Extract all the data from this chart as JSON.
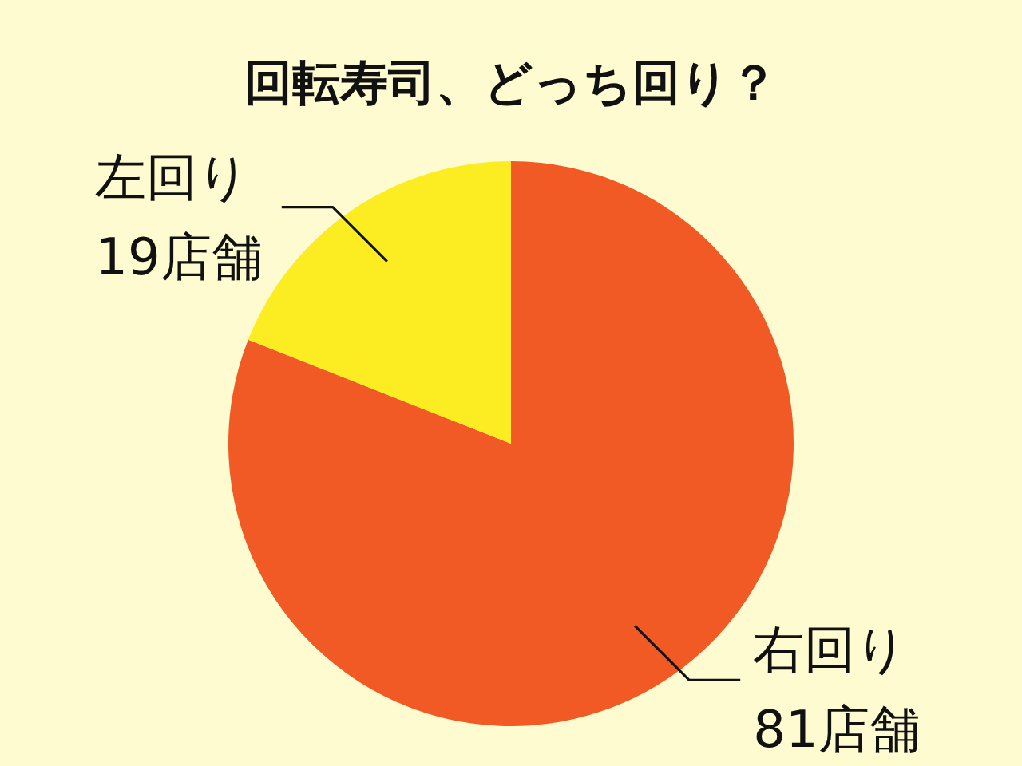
{
  "chart_data": {
    "type": "pie",
    "title": "回転寿司、どっち回り？",
    "categories": [
      "右回り",
      "左回り"
    ],
    "values": [
      81,
      19
    ],
    "colors": [
      "#f15a24",
      "#fcec22"
    ],
    "value_labels": [
      "81店舗",
      "19店舗"
    ]
  }
}
